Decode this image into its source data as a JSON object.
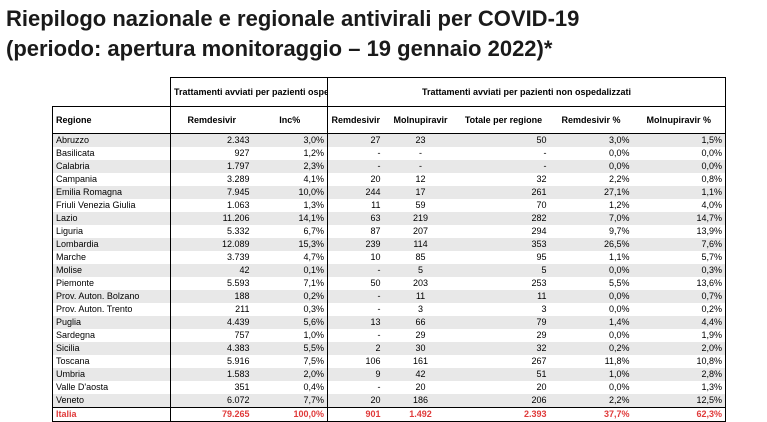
{
  "title_line1": "Riepilogo nazionale e regionale antivirali per COVID-19",
  "title_line2": "(periodo: apertura monitoraggio – 19 gennaio 2022)*",
  "group_hosp": "Trattamenti avviati per pazienti ospedalizzati",
  "group_nonhosp": "Trattamenti avviati per pazienti non ospedalizzati",
  "columns": [
    "Regione",
    "Remdesivir",
    "Inc%",
    "Remdesivir",
    "Molnupiravir",
    "Totale per regione",
    "Remdesivir %",
    "Molnupiravir %"
  ],
  "rows": [
    [
      "Abruzzo",
      "2.343",
      "3,0%",
      "27",
      "23",
      "50",
      "3,0%",
      "1,5%"
    ],
    [
      "Basilicata",
      "927",
      "1,2%",
      "-",
      "-",
      "-",
      "0,0%",
      "0,0%"
    ],
    [
      "Calabria",
      "1.797",
      "2,3%",
      "-",
      "-",
      "-",
      "0,0%",
      "0,0%"
    ],
    [
      "Campania",
      "3.289",
      "4,1%",
      "20",
      "12",
      "32",
      "2,2%",
      "0,8%"
    ],
    [
      "Emilia Romagna",
      "7.945",
      "10,0%",
      "244",
      "17",
      "261",
      "27,1%",
      "1,1%"
    ],
    [
      "Friuli Venezia Giulia",
      "1.063",
      "1,3%",
      "11",
      "59",
      "70",
      "1,2%",
      "4,0%"
    ],
    [
      "Lazio",
      "11.206",
      "14,1%",
      "63",
      "219",
      "282",
      "7,0%",
      "14,7%"
    ],
    [
      "Liguria",
      "5.332",
      "6,7%",
      "87",
      "207",
      "294",
      "9,7%",
      "13,9%"
    ],
    [
      "Lombardia",
      "12.089",
      "15,3%",
      "239",
      "114",
      "353",
      "26,5%",
      "7,6%"
    ],
    [
      "Marche",
      "3.739",
      "4,7%",
      "10",
      "85",
      "95",
      "1,1%",
      "5,7%"
    ],
    [
      "Molise",
      "42",
      "0,1%",
      "-",
      "5",
      "5",
      "0,0%",
      "0,3%"
    ],
    [
      "Piemonte",
      "5.593",
      "7,1%",
      "50",
      "203",
      "253",
      "5,5%",
      "13,6%"
    ],
    [
      "Prov. Auton. Bolzano",
      "188",
      "0,2%",
      "-",
      "11",
      "11",
      "0,0%",
      "0,7%"
    ],
    [
      "Prov. Auton. Trento",
      "211",
      "0,3%",
      "-",
      "3",
      "3",
      "0,0%",
      "0,2%"
    ],
    [
      "Puglia",
      "4.439",
      "5,6%",
      "13",
      "66",
      "79",
      "1,4%",
      "4,4%"
    ],
    [
      "Sardegna",
      "757",
      "1,0%",
      "-",
      "29",
      "29",
      "0,0%",
      "1,9%"
    ],
    [
      "Sicilia",
      "4.383",
      "5,5%",
      "2",
      "30",
      "32",
      "0,2%",
      "2,0%"
    ],
    [
      "Toscana",
      "5.916",
      "7,5%",
      "106",
      "161",
      "267",
      "11,8%",
      "10,8%"
    ],
    [
      "Umbria",
      "1.583",
      "2,0%",
      "9",
      "42",
      "51",
      "1,0%",
      "2,8%"
    ],
    [
      "Valle D'aosta",
      "351",
      "0,4%",
      "-",
      "20",
      "20",
      "0,0%",
      "1,3%"
    ],
    [
      "Veneto",
      "6.072",
      "7,7%",
      "20",
      "186",
      "206",
      "2,2%",
      "12,5%"
    ]
  ],
  "total": [
    "Italia",
    "79.265",
    "100,0%",
    "901",
    "1.492",
    "2.393",
    "37,7%",
    "62,3%"
  ],
  "colors": {
    "total_text": "#e03a3a",
    "stripe": "#e8e8e8"
  }
}
